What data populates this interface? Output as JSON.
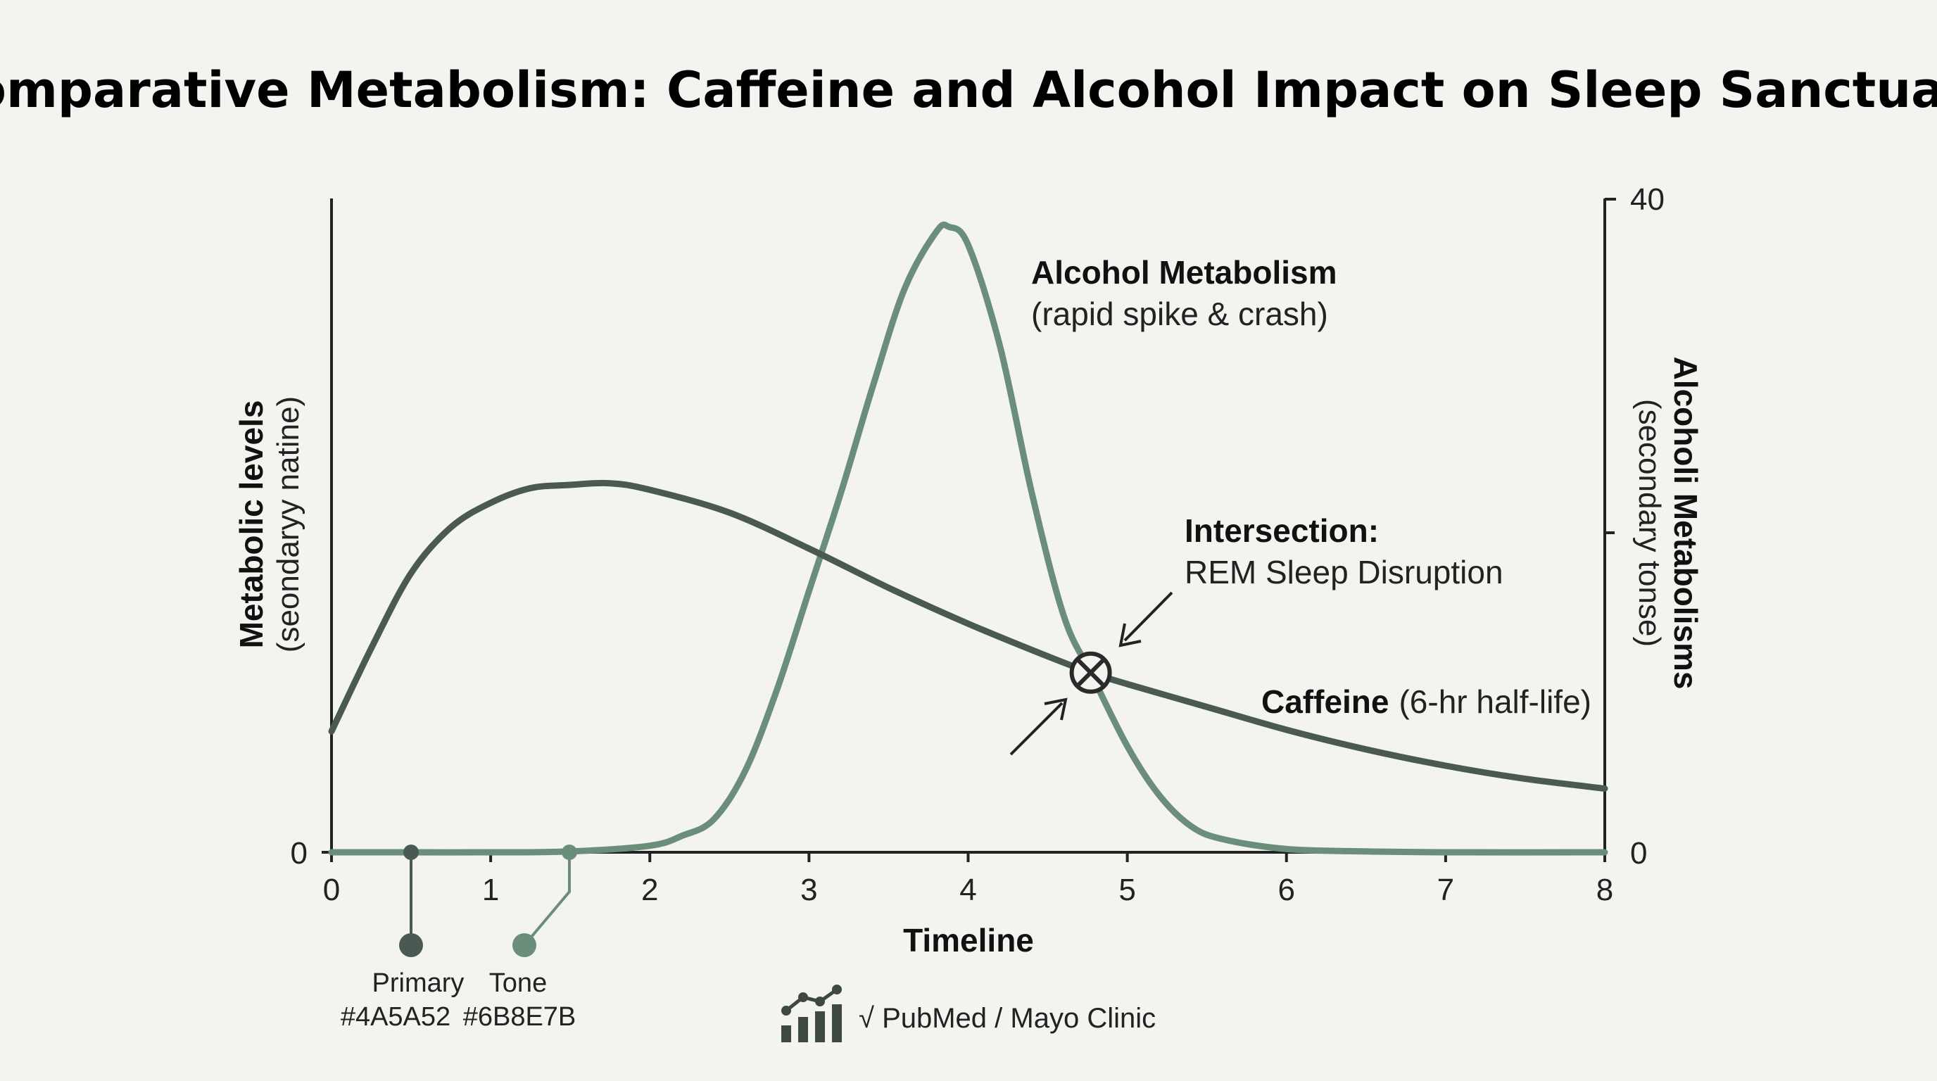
{
  "chart_data": {
    "type": "line",
    "title": "Comparative Metabolism: Caffeine and Alcohol Impact on Sleep Sanctuary",
    "xlabel": "Timeline",
    "ylabel_left": "Metabolic levels",
    "ylabel_left_sub": "(seondarуy natine)",
    "ylabel_right": "Alcoholi Metabolisms",
    "ylabel_right_sub": "(secondary tonse)",
    "x_ticks": [
      "0",
      "1",
      "2",
      "3",
      "4",
      "5",
      "6",
      "7",
      "8"
    ],
    "xlim": [
      0,
      8
    ],
    "y_left_tick": "0",
    "y_right_ticks": {
      "top": "40",
      "bottom": "0"
    },
    "ylim_right": [
      0,
      40
    ],
    "grid": false,
    "series": [
      {
        "name": "Caffeine",
        "color": "#4A5A52",
        "x": [
          0,
          0.25,
          0.5,
          0.75,
          1.0,
          1.25,
          1.5,
          1.75,
          2.0,
          2.5,
          3.0,
          3.5,
          4.0,
          4.5,
          4.77,
          5.0,
          5.5,
          6.0,
          6.5,
          7.0,
          7.5,
          8.0
        ],
        "y": [
          7.4,
          12.5,
          17.1,
          19.9,
          21.4,
          22.3,
          22.5,
          22.6,
          22.2,
          20.8,
          18.6,
          16.2,
          14.0,
          12.0,
          11.0,
          10.3,
          8.9,
          7.5,
          6.3,
          5.3,
          4.5,
          3.9
        ]
      },
      {
        "name": "Alcohol Metabolism",
        "color": "#6B8E7B",
        "x": [
          0,
          0.5,
          1.0,
          1.5,
          2.0,
          2.2,
          2.4,
          2.6,
          2.8,
          3.0,
          3.2,
          3.4,
          3.6,
          3.8,
          3.88,
          4.0,
          4.2,
          4.4,
          4.6,
          4.77,
          5.0,
          5.2,
          5.4,
          5.6,
          6.0,
          6.5,
          7.0,
          8.0
        ],
        "y": [
          0,
          0,
          0,
          0.05,
          0.4,
          1.0,
          2.0,
          5.0,
          10.0,
          16.0,
          22.0,
          28.5,
          34.5,
          38.0,
          38.3,
          37.2,
          31.0,
          22.0,
          14.5,
          11.0,
          6.5,
          3.5,
          1.6,
          0.8,
          0.2,
          0.05,
          0,
          0
        ]
      }
    ],
    "annotations": {
      "alcohol_label": "Alcohol Metabolism",
      "alcohol_sub": "(rapid spike & crash)",
      "intersection_title": "Intersection:",
      "intersection_sub": "REM Sleep Disruption",
      "intersection_x": 4.77,
      "intersection_y": 11.0,
      "caffeine_label": "Caffeine",
      "caffeine_sub": "(6-hr half-life)"
    }
  },
  "legend": {
    "primary": {
      "label": "Primary",
      "hex": "#4A5A52",
      "color": "#4A5A52"
    },
    "tone": {
      "label": "Tone",
      "hex": "#6B8E7B",
      "color": "#6B8E7B"
    }
  },
  "source": {
    "text": "√ PubMed / Mayo Clinic",
    "icon": "chart-trend-icon"
  }
}
